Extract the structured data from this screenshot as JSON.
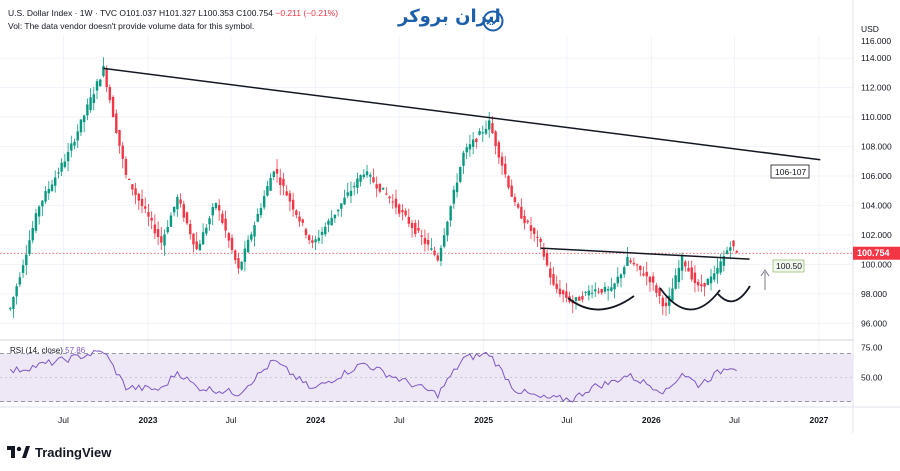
{
  "header": {
    "symbol": "U.S. Dollar Index · 1W · TVC",
    "ohlc_o": "O101.037",
    "ohlc_h": "H101.327",
    "ohlc_l": "L100.353",
    "ohlc_c": "C100.754",
    "change": "−0.211 (−0.21%)",
    "vol_note": "Vol: The data vendor doesn't provide volume data for this symbol."
  },
  "brand": {
    "text": "ایران بروکر"
  },
  "footer": {
    "logo_text": "TradingView"
  },
  "colors": {
    "up": "#089981",
    "down": "#f23645",
    "rsi": "#7e57c2",
    "rsi_band": "#ede7f6",
    "last_price_bg": "#f23645"
  },
  "chart_data": [
    {
      "type": "candlestick",
      "currency": "USD",
      "ylim": [
        95.0,
        115.5
      ],
      "y_ticks": [
        "114.000",
        "112.000",
        "110.000",
        "108.000",
        "106.000",
        "104.000",
        "102.000",
        "100.000",
        "98.000",
        "96.000"
      ],
      "y_tick_values": [
        114,
        112,
        110,
        108,
        106,
        104,
        102,
        100,
        98,
        96
      ],
      "y_top_partial": "116.000",
      "x_ticks": [
        "Jul",
        "2023",
        "Jul",
        "2024",
        "Jul",
        "2025",
        "Jul",
        "2026",
        "Jul",
        "2027"
      ],
      "last_price": "100.754",
      "last_price_value": 100.754,
      "annotations": [
        {
          "text": "106-107",
          "kind": "target-label"
        },
        {
          "text": "100.50",
          "kind": "neckline-label"
        }
      ],
      "trendlines": [
        {
          "name": "resistance",
          "from": {
            "date": "2022-09-26",
            "price": 113.3
          },
          "to": {
            "date": "2027-01-04",
            "price": 107.1
          }
        },
        {
          "name": "neckline",
          "from": {
            "date": "2025-05-05",
            "price": 101.1
          },
          "to": {
            "date": "2026-08-03",
            "price": 100.35
          }
        }
      ],
      "key_levels": [
        {
          "date": "2022-03-07",
          "value": 97.0
        },
        {
          "date": "2022-05-09",
          "value": 104.0
        },
        {
          "date": "2022-07-11",
          "value": 107.5
        },
        {
          "date": "2022-09-26",
          "value": 113.3
        },
        {
          "date": "2022-11-14",
          "value": 106.0
        },
        {
          "date": "2023-01-30",
          "value": 101.5
        },
        {
          "date": "2023-03-06",
          "value": 104.5
        },
        {
          "date": "2023-04-17",
          "value": 101.0
        },
        {
          "date": "2023-05-29",
          "value": 104.2
        },
        {
          "date": "2023-07-17",
          "value": 99.6
        },
        {
          "date": "2023-10-02",
          "value": 106.5
        },
        {
          "date": "2023-12-25",
          "value": 101.3
        },
        {
          "date": "2024-04-15",
          "value": 106.3
        },
        {
          "date": "2024-06-10",
          "value": 104.5
        },
        {
          "date": "2024-09-23",
          "value": 100.4
        },
        {
          "date": "2024-11-18",
          "value": 107.5
        },
        {
          "date": "2025-01-13",
          "value": 109.6
        },
        {
          "date": "2025-03-10",
          "value": 104.0
        },
        {
          "date": "2025-05-05",
          "value": 101.3
        },
        {
          "date": "2025-06-02",
          "value": 98.5
        },
        {
          "date": "2025-07-14",
          "value": 97.4
        },
        {
          "date": "2025-08-25",
          "value": 98.3
        },
        {
          "date": "2025-10-06",
          "value": 98.2
        },
        {
          "date": "2025-11-10",
          "value": 100.3
        },
        {
          "date": "2025-12-29",
          "value": 99.0
        },
        {
          "date": "2026-02-02",
          "value": 97.0
        },
        {
          "date": "2026-03-09",
          "value": 100.4
        },
        {
          "date": "2026-04-13",
          "value": 98.4
        },
        {
          "date": "2026-05-18",
          "value": 99.2
        },
        {
          "date": "2026-06-22",
          "value": 101.4
        },
        {
          "date": "2026-07-06",
          "value": 100.75
        }
      ]
    },
    {
      "type": "line",
      "title": "RSI (14, close)",
      "value_label": "57.86",
      "ylim": [
        28,
        78
      ],
      "y_ticks": [
        "75.00",
        "50.00"
      ],
      "y_tick_values": [
        75,
        50
      ],
      "bands": [
        30,
        70
      ],
      "key_levels": [
        {
          "date": "2022-03-07",
          "value": 55
        },
        {
          "date": "2022-09-26",
          "value": 72
        },
        {
          "date": "2022-11-14",
          "value": 42
        },
        {
          "date": "2023-01-30",
          "value": 40
        },
        {
          "date": "2023-03-06",
          "value": 55
        },
        {
          "date": "2023-04-17",
          "value": 42
        },
        {
          "date": "2023-07-17",
          "value": 37
        },
        {
          "date": "2023-10-02",
          "value": 64
        },
        {
          "date": "2023-12-25",
          "value": 40
        },
        {
          "date": "2024-04-15",
          "value": 62
        },
        {
          "date": "2024-06-10",
          "value": 52
        },
        {
          "date": "2024-09-23",
          "value": 36
        },
        {
          "date": "2024-11-18",
          "value": 66
        },
        {
          "date": "2025-01-13",
          "value": 70
        },
        {
          "date": "2025-03-10",
          "value": 40
        },
        {
          "date": "2025-05-05",
          "value": 33
        },
        {
          "date": "2025-07-14",
          "value": 32
        },
        {
          "date": "2025-08-25",
          "value": 42
        },
        {
          "date": "2025-10-06",
          "value": 46
        },
        {
          "date": "2025-11-10",
          "value": 52
        },
        {
          "date": "2026-02-02",
          "value": 38
        },
        {
          "date": "2026-03-09",
          "value": 54
        },
        {
          "date": "2026-04-13",
          "value": 44
        },
        {
          "date": "2026-05-18",
          "value": 52
        },
        {
          "date": "2026-06-22",
          "value": 60
        },
        {
          "date": "2026-07-06",
          "value": 57.86
        }
      ]
    }
  ]
}
